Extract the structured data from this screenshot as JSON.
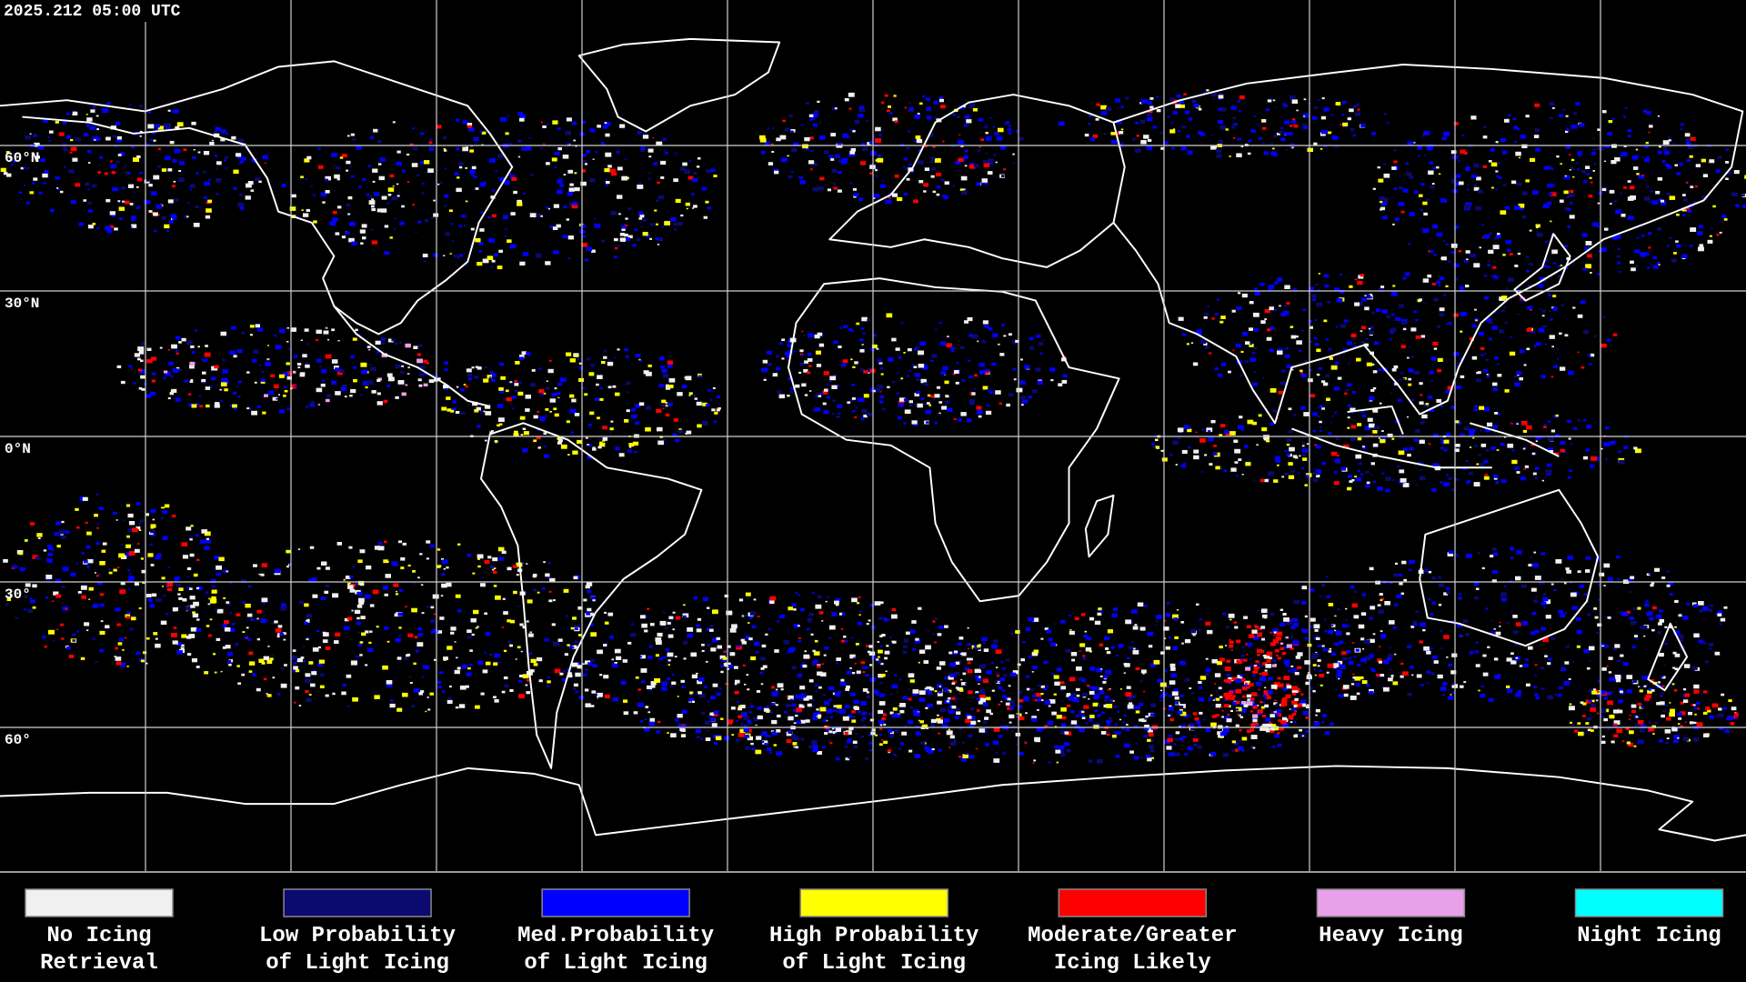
{
  "timestamp": "2025.212 05:00 UTC",
  "latitude_labels": [
    "60°N",
    "30°N",
    "0°N",
    "30°",
    "60°"
  ],
  "legend": [
    {
      "color": "#f0f0f0",
      "label": [
        "No Icing",
        "Retrieval"
      ]
    },
    {
      "color": "#0a0a70",
      "label": [
        "Low Probability",
        "of Light Icing"
      ]
    },
    {
      "color": "#0000ff",
      "label": [
        "Med.Probability",
        "of Light Icing"
      ]
    },
    {
      "color": "#ffff00",
      "label": [
        "High Probability",
        "of Light Icing"
      ]
    },
    {
      "color": "#ff0000",
      "label": [
        "Moderate/Greater",
        "Icing Likely"
      ]
    },
    {
      "color": "#e8a0e8",
      "label": [
        "Heavy Icing"
      ]
    },
    {
      "color": "#00ffff",
      "label": [
        "Night Icing"
      ]
    }
  ]
}
